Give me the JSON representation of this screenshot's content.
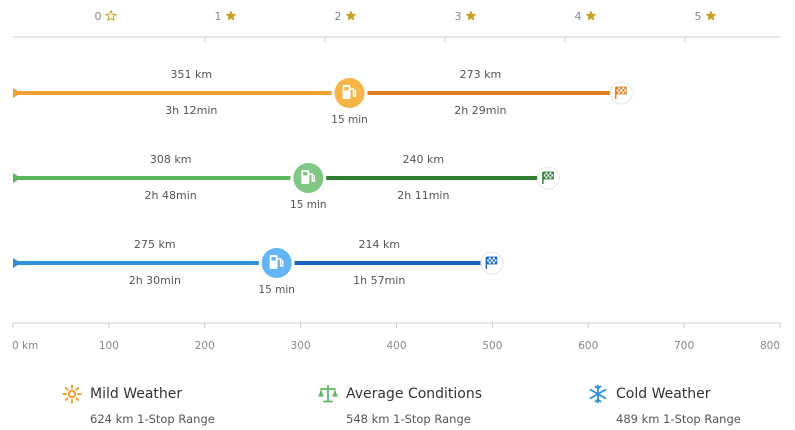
{
  "chart_data": {
    "type": "range-timeline",
    "xlabel": "",
    "ylabel": "",
    "x_unit_label": "km",
    "xlim": [
      0,
      800
    ],
    "x_ticks": [
      0,
      100,
      200,
      300,
      400,
      500,
      600,
      700,
      800
    ],
    "x_tick_labels": [
      "0 km",
      "100",
      "200",
      "300",
      "400",
      "500",
      "600",
      "700",
      "800"
    ],
    "rating_scale": {
      "values": [
        0,
        1,
        2,
        3,
        4,
        5
      ],
      "labels": [
        "0",
        "1",
        "2",
        "3",
        "4",
        "5"
      ]
    },
    "series": [
      {
        "key": "mild",
        "leg1_km": 351,
        "leg1_label": "351 km",
        "leg1_time": "3h 12min",
        "stop_label": "15 min",
        "leg2_km": 273,
        "leg2_label": "273 km",
        "leg2_time": "2h 29min",
        "color_light": "#f0a030",
        "color_dark": "#e07e20",
        "stop_color": "#f7b548",
        "flag_color": "#e07e20"
      },
      {
        "key": "average",
        "leg1_km": 308,
        "leg1_label": "308 km",
        "leg1_time": "2h 48min",
        "stop_label": "15 min",
        "leg2_km": 240,
        "leg2_label": "240 km",
        "leg2_time": "2h 11min",
        "color_light": "#5cb85c",
        "color_dark": "#2e7d32",
        "stop_color": "#81c784",
        "flag_color": "#2e7d32"
      },
      {
        "key": "cold",
        "leg1_km": 275,
        "leg1_label": "275 km",
        "leg1_time": "2h 30min",
        "stop_label": "15 min",
        "leg2_km": 214,
        "leg2_label": "214 km",
        "leg2_time": "1h 57min",
        "color_light": "#2f8fd8",
        "color_dark": "#1565c0",
        "stop_color": "#64b5f6",
        "flag_color": "#1565c0"
      }
    ]
  },
  "legend": [
    {
      "title": "Mild Weather",
      "sub": "624 km 1-Stop Range",
      "icon": "sun-icon",
      "color": "#f0a030"
    },
    {
      "title": "Average Conditions",
      "sub": "548 km 1-Stop Range",
      "icon": "balance-icon",
      "color": "#5cb85c"
    },
    {
      "title": "Cold Weather",
      "sub": "489 km 1-Stop Range",
      "icon": "snowflake-icon",
      "color": "#2f8fd8"
    }
  ],
  "colors": {
    "axis": "#cccccc",
    "tick_text": "#888888",
    "star": "#c9a227",
    "star_outline": "#c9a227"
  }
}
